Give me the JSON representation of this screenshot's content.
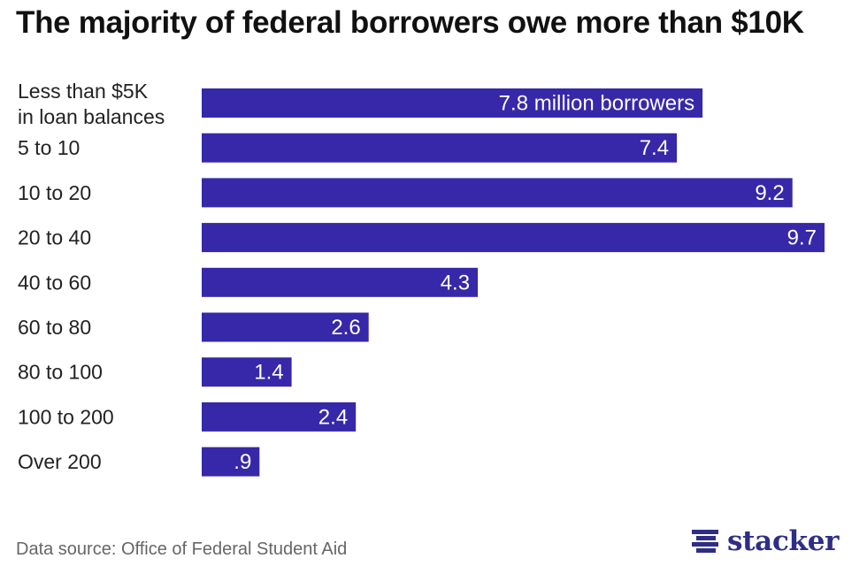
{
  "title": "The majority of federal borrowers owe more than $10K",
  "source": "Data source: Office of Federal Student Aid",
  "brand": {
    "name": "stacker",
    "icon": "stacker-logo-icon",
    "color": "#2e2e86"
  },
  "chart_data": {
    "type": "bar",
    "orientation": "horizontal",
    "bar_color": "#3628a8",
    "categories": [
      [
        "Less than $5K",
        "in loan balances"
      ],
      [
        "5 to 10"
      ],
      [
        "10 to 20"
      ],
      [
        "20 to 40"
      ],
      [
        "40 to 60"
      ],
      [
        "60 to 80"
      ],
      [
        "80 to 100"
      ],
      [
        "100 to 200"
      ],
      [
        "Over 200"
      ]
    ],
    "values": [
      7.8,
      7.4,
      9.2,
      9.7,
      4.3,
      2.6,
      1.4,
      2.4,
      0.9
    ],
    "value_labels": [
      "7.8 million borrowers",
      "7.4",
      "9.2",
      "9.7",
      "4.3",
      "2.6",
      "1.4",
      "2.4",
      ".9"
    ],
    "xlim": [
      0,
      9.7
    ],
    "grid": false,
    "legend": "none"
  }
}
